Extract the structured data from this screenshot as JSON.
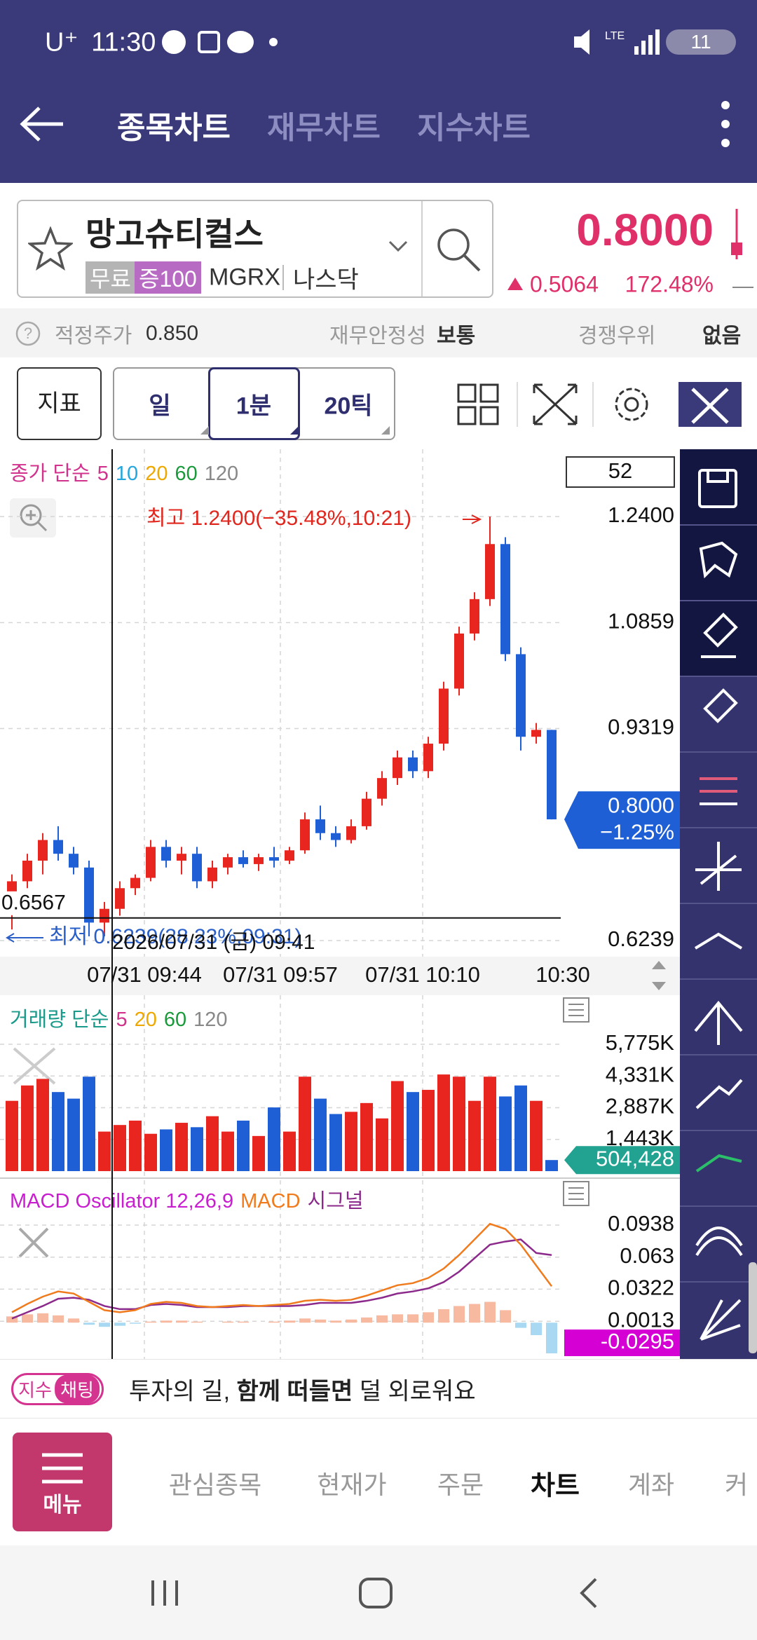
{
  "status_bar": {
    "carrier": "U⁺",
    "time": "11:30",
    "battery": "11"
  },
  "header": {
    "tabs": [
      "종목차트",
      "재무차트",
      "지수차트"
    ]
  },
  "stock": {
    "name": "망고슈티컬스",
    "tags": [
      "무료",
      "증100"
    ],
    "ticker": "MGRX",
    "exchange": "나스닥",
    "price": "0.8000",
    "change": "0.5064",
    "change_pct": "172.48%"
  },
  "info": {
    "fair_price_label": "적정주가",
    "fair_price": "0.850",
    "stability_label": "재무안정성",
    "stability": "보통",
    "moat_label": "경쟁우위",
    "moat": "없음"
  },
  "toolbar": {
    "indicator": "지표",
    "periods": [
      "일",
      "1분",
      "20틱"
    ]
  },
  "chart": {
    "price": {
      "legend_prefix": "종가 단순",
      "ma_periods": [
        {
          "label": "5",
          "color": "#d1338c"
        },
        {
          "label": "10",
          "color": "#26a6dc"
        },
        {
          "label": "20",
          "color": "#eea800"
        },
        {
          "label": "60",
          "color": "#1b9a3b"
        },
        {
          "label": "120",
          "color": "#888888"
        }
      ],
      "count": "52",
      "ylim": [
        0.6239,
        1.24
      ],
      "yticks": [
        {
          "value": 1.24,
          "label": "1.2400"
        },
        {
          "value": 1.0859,
          "label": "1.0859"
        },
        {
          "value": 0.9319,
          "label": "0.9319"
        },
        {
          "value": 0.6239,
          "label": "0.6239"
        }
      ],
      "current": {
        "value": 0.8,
        "label": "0.8000",
        "change": "−1.25%"
      },
      "up_color": "#e8251f",
      "down_color": "#1e5fd6",
      "open": [
        0.68,
        0.71,
        0.74,
        0.77,
        0.75,
        0.73,
        0.65,
        0.67,
        0.7,
        0.715,
        0.76,
        0.74,
        0.75,
        0.71,
        0.73,
        0.745,
        0.735,
        0.745,
        0.74,
        0.755,
        0.8,
        0.78,
        0.77,
        0.79,
        0.83,
        0.86,
        0.89,
        0.87,
        0.91,
        0.99,
        1.07,
        1.12,
        1.2,
        1.04,
        0.92,
        0.93
      ],
      "high": [
        0.72,
        0.75,
        0.78,
        0.79,
        0.76,
        0.74,
        0.68,
        0.71,
        0.72,
        0.77,
        0.77,
        0.76,
        0.76,
        0.74,
        0.75,
        0.755,
        0.75,
        0.76,
        0.76,
        0.81,
        0.82,
        0.79,
        0.8,
        0.84,
        0.87,
        0.9,
        0.9,
        0.92,
        1.0,
        1.08,
        1.13,
        1.24,
        1.21,
        1.05,
        0.94,
        0.93
      ],
      "low": [
        0.64,
        0.7,
        0.72,
        0.74,
        0.72,
        0.63,
        0.63,
        0.66,
        0.69,
        0.71,
        0.73,
        0.72,
        0.7,
        0.7,
        0.72,
        0.73,
        0.725,
        0.73,
        0.735,
        0.75,
        0.77,
        0.76,
        0.765,
        0.785,
        0.82,
        0.85,
        0.86,
        0.86,
        0.9,
        0.98,
        1.06,
        1.11,
        1.03,
        0.9,
        0.91,
        0.8
      ],
      "close": [
        0.71,
        0.74,
        0.77,
        0.75,
        0.73,
        0.65,
        0.67,
        0.7,
        0.715,
        0.76,
        0.74,
        0.75,
        0.71,
        0.73,
        0.745,
        0.735,
        0.745,
        0.74,
        0.755,
        0.8,
        0.78,
        0.77,
        0.79,
        0.83,
        0.86,
        0.89,
        0.87,
        0.91,
        0.99,
        1.07,
        1.12,
        1.2,
        1.04,
        0.92,
        0.93,
        0.8
      ],
      "high_annotation": "최고 1.2400(−35.48%,10:21)",
      "low_annotation": "최저 0.6239(28.23%,09:31)",
      "crosshair": {
        "value": 0.6567,
        "label": "0.6567",
        "time": "2026/07/31 (금) 09:41"
      }
    },
    "time_labels": [
      "07/31 09:44",
      "07/31 09:57",
      "07/31 10:10",
      "10:30"
    ],
    "volume": {
      "legend_prefix": "거래량 단순",
      "ma_periods": [
        {
          "label": "5",
          "color": "#d1338c"
        },
        {
          "label": "20",
          "color": "#eea800"
        },
        {
          "label": "60",
          "color": "#1b9a3b"
        },
        {
          "label": "120",
          "color": "#888888"
        }
      ],
      "ylim": [
        0,
        5775000
      ],
      "yticks": [
        {
          "value": 5775000,
          "label": "5,775K"
        },
        {
          "value": 4331000,
          "label": "4,331K"
        },
        {
          "value": 2887000,
          "label": "2,887K"
        },
        {
          "value": 1443000,
          "label": "1,443K"
        }
      ],
      "current": {
        "value": 504428,
        "label": "504,428"
      },
      "values": [
        3200000,
        3900000,
        4200000,
        3600000,
        3300000,
        4300000,
        1800000,
        2100000,
        2300000,
        1700000,
        1900000,
        2200000,
        2000000,
        2500000,
        1800000,
        2300000,
        1600000,
        2900000,
        1800000,
        4300000,
        3300000,
        2600000,
        2700000,
        3100000,
        2400000,
        4100000,
        3600000,
        3700000,
        4400000,
        4300000,
        3200000,
        4300000,
        3400000,
        3900000,
        3200000,
        504428
      ]
    },
    "macd": {
      "title": "MACD Oscillator 12,26,9",
      "macd_label": "MACD",
      "signal_label": "시그널",
      "macd_color": "#f07b1d",
      "signal_color": "#8b2a8b",
      "pos_color": "#f7b9a0",
      "neg_color": "#a9d9f2",
      "ylim": [
        -0.0295,
        0.0938
      ],
      "yticks": [
        0.0938,
        0.063,
        0.0322,
        0.0013
      ],
      "current": -0.0295,
      "oscillator": [
        0.006,
        0.008,
        0.009,
        0.007,
        0.004,
        -0.002,
        -0.004,
        -0.003,
        -0.001,
        0.001,
        0.002,
        0.002,
        0.001,
        0.0,
        0.001,
        0.001,
        0.0,
        0.001,
        0.002,
        0.004,
        0.003,
        0.002,
        0.003,
        0.005,
        0.007,
        0.008,
        0.008,
        0.01,
        0.013,
        0.016,
        0.018,
        0.02,
        0.012,
        -0.005,
        -0.012,
        -0.0295
      ],
      "macd": [
        0.01,
        0.018,
        0.025,
        0.03,
        0.028,
        0.02,
        0.012,
        0.01,
        0.012,
        0.018,
        0.02,
        0.019,
        0.016,
        0.015,
        0.016,
        0.017,
        0.016,
        0.017,
        0.018,
        0.021,
        0.022,
        0.021,
        0.022,
        0.026,
        0.031,
        0.036,
        0.038,
        0.043,
        0.052,
        0.065,
        0.08,
        0.095,
        0.09,
        0.075,
        0.055,
        0.035
      ],
      "signal": [
        0.004,
        0.01,
        0.016,
        0.023,
        0.024,
        0.022,
        0.016,
        0.013,
        0.013,
        0.017,
        0.018,
        0.017,
        0.015,
        0.015,
        0.015,
        0.016,
        0.016,
        0.016,
        0.016,
        0.017,
        0.019,
        0.019,
        0.019,
        0.021,
        0.024,
        0.028,
        0.03,
        0.033,
        0.039,
        0.049,
        0.062,
        0.075,
        0.078,
        0.08,
        0.067,
        0.065
      ]
    }
  },
  "banner": {
    "tag_1": "지수",
    "tag_2": "채팅",
    "text_before": "투자의 길, ",
    "text_bold": "함께 떠들면",
    "text_after": " 덜 외로워요"
  },
  "bottom_nav": {
    "menu": "메뉴",
    "items": [
      "관심종목",
      "현재가",
      "주문",
      "차트",
      "계좌",
      "커"
    ]
  }
}
